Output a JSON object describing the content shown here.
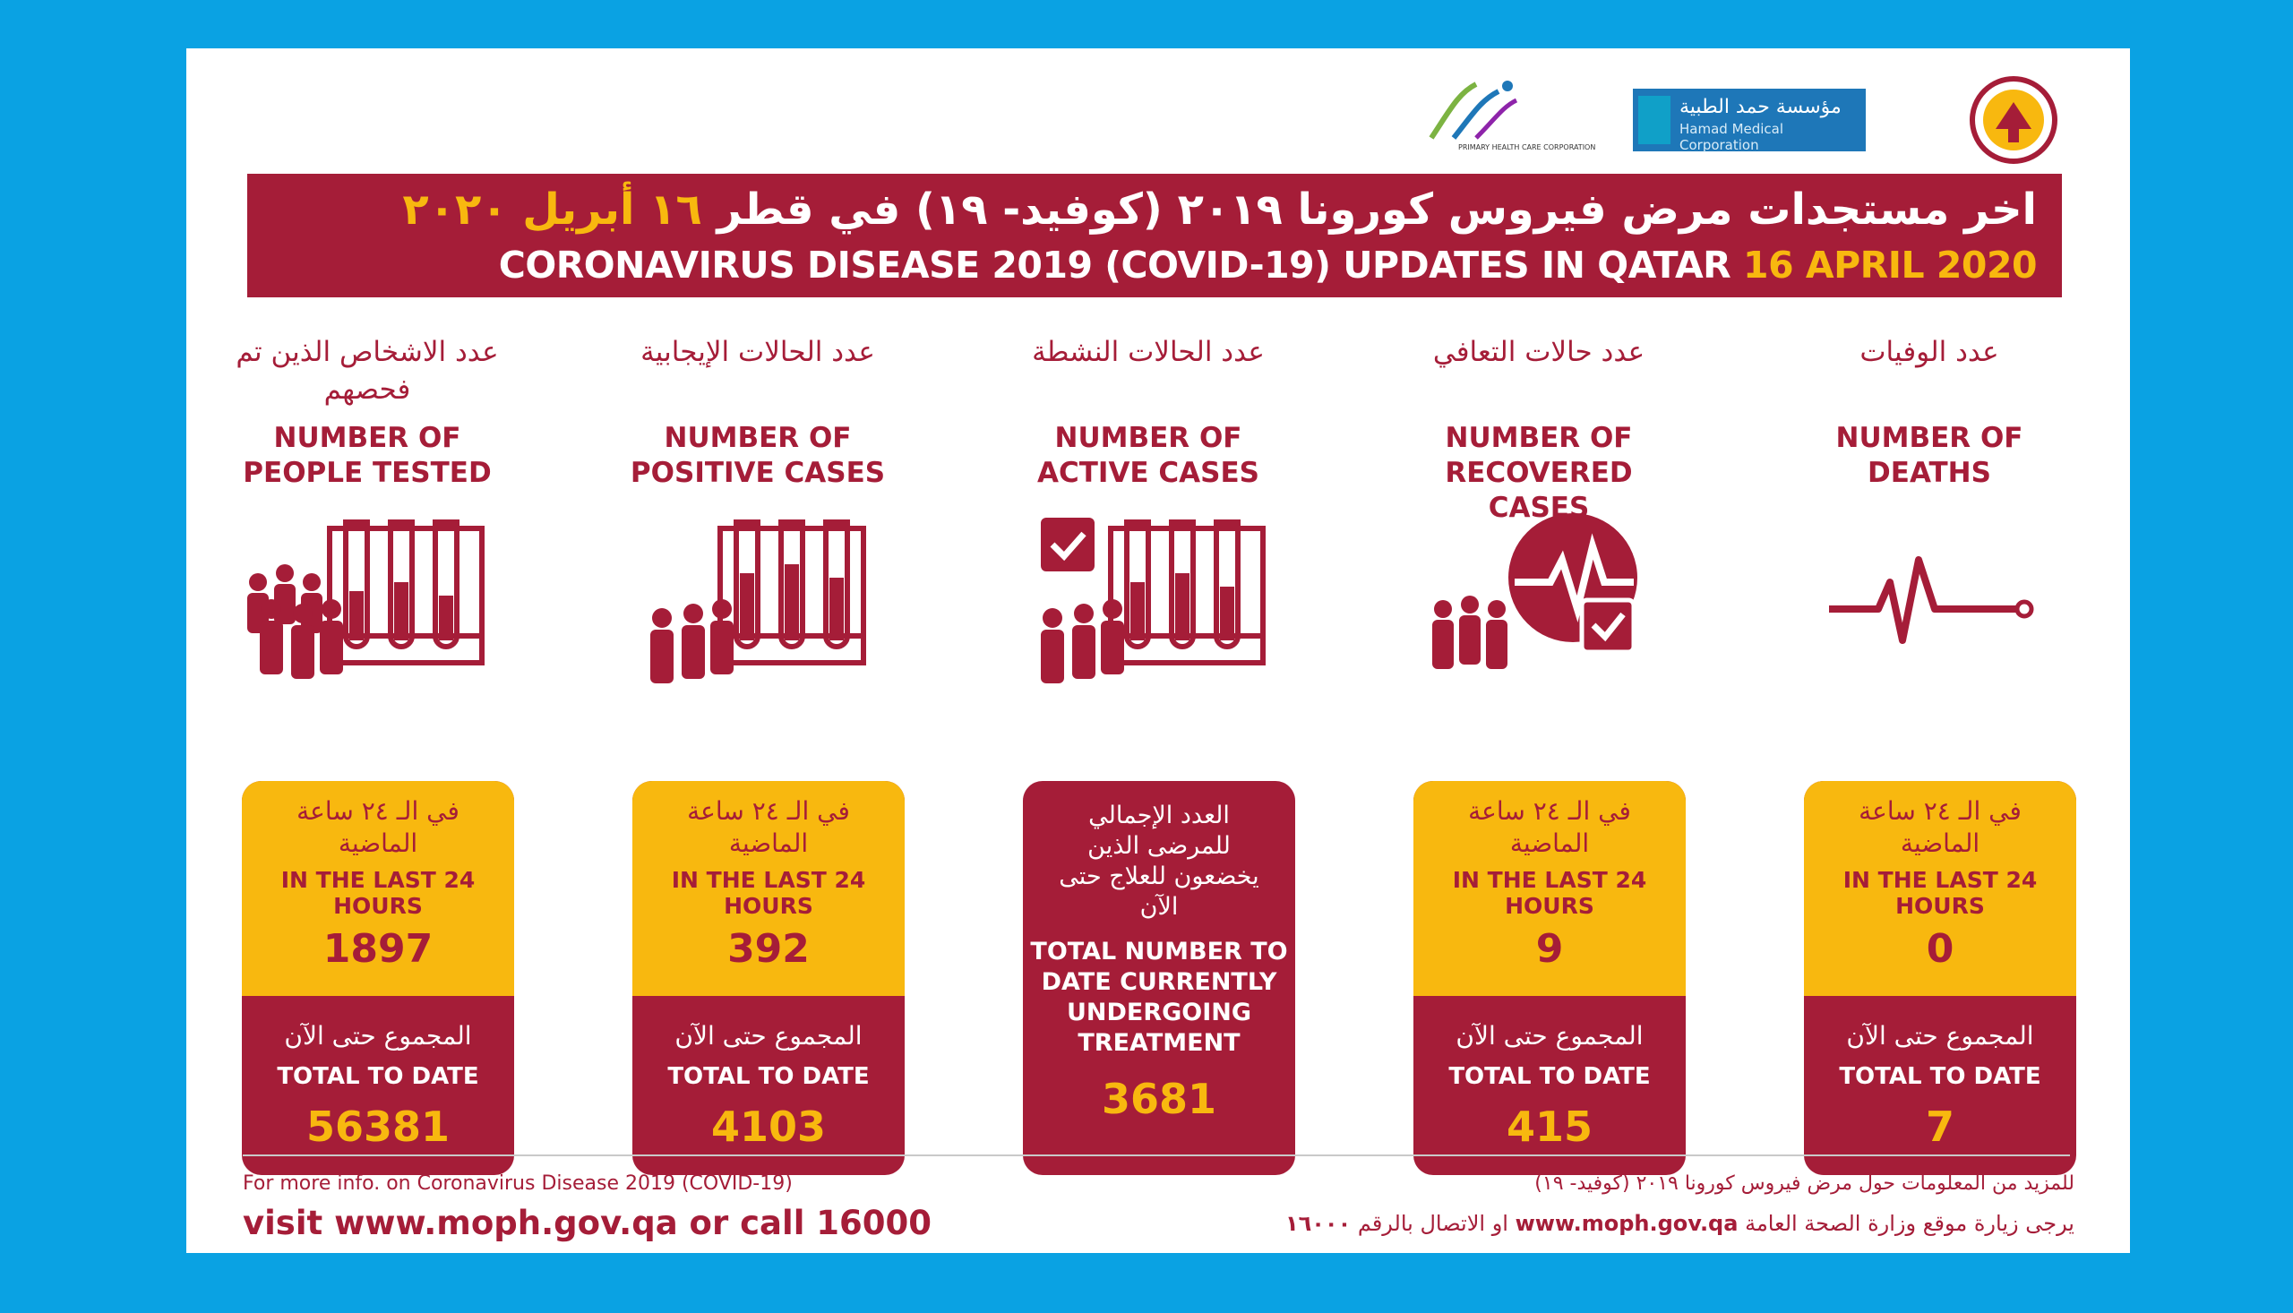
{
  "colors": {
    "background": "#0aa2e3",
    "primary": "#a51d38",
    "accent": "#f8b80f",
    "white": "#ffffff"
  },
  "logos": {
    "hmc": {
      "line1": "مؤسسة حمد الطبية",
      "line2": "Hamad Medical Corporation"
    },
    "phcc": {
      "caption": "PRIMARY HEALTH CARE CORPORATION"
    }
  },
  "banner": {
    "title_ar": "اخر مستجدات مرض فيروس كورونا ٢٠١٩ (كوفيد- ١٩) في قطر",
    "date_ar": "١٦ أبريل ٢٠٢٠",
    "title_en": "CORONAVIRUS DISEASE 2019 (COVID-19) UPDATES IN QATAR",
    "date_en": "16 APRIL 2020"
  },
  "columns": [
    {
      "title_ar": "عدد الاشخاص الذين تم فحصهم",
      "title_en": "NUMBER OF PEOPLE TESTED",
      "icon": "people-test-tubes-icon",
      "last24_ar": "في الـ ٢٤ ساعة الماضية",
      "last24_en": "IN THE LAST 24 HOURS",
      "last24_value": "1897",
      "total_ar": "المجموع حتى الآن",
      "total_en": "TOTAL TO DATE",
      "total_value": "56381"
    },
    {
      "title_ar": "عدد الحالات الإيجابية",
      "title_en": "NUMBER OF POSITIVE CASES",
      "icon": "positive-test-tubes-icon",
      "last24_ar": "في الـ ٢٤ ساعة الماضية",
      "last24_en": "IN THE LAST 24 HOURS",
      "last24_value": "392",
      "total_ar": "المجموع حتى الآن",
      "total_en": "TOTAL TO DATE",
      "total_value": "4103"
    },
    {
      "title_ar": "عدد الحالات النشطة",
      "title_en": "NUMBER OF ACTIVE CASES",
      "icon": "active-cases-check-icon",
      "total_ar": "العدد الإجمالي للمرضى الذين يخضعون للعلاج حتى الآن",
      "total_en": "TOTAL NUMBER TO DATE CURRENTLY UNDERGOING TREATMENT",
      "total_value": "3681"
    },
    {
      "title_ar": "عدد حالات التعافي",
      "title_en": "NUMBER OF RECOVERED CASES",
      "icon": "recovered-heartbeat-icon",
      "last24_ar": "في الـ ٢٤ ساعة الماضية",
      "last24_en": "IN THE LAST 24 HOURS",
      "last24_value": "9",
      "total_ar": "المجموع حتى الآن",
      "total_en": "TOTAL TO DATE",
      "total_value": "415"
    },
    {
      "title_ar": "عدد الوفيات",
      "title_en": "NUMBER OF DEATHS",
      "icon": "flatline-pulse-icon",
      "last24_ar": "في الـ ٢٤ ساعة الماضية",
      "last24_en": "IN THE LAST 24 HOURS",
      "last24_value": "0",
      "total_ar": "المجموع حتى الآن",
      "total_en": "TOTAL TO DATE",
      "total_value": "7"
    }
  ],
  "footer": {
    "info_en": "For more info. on Coronavirus Disease 2019 (COVID-19)",
    "visit_en": "visit www.moph.gov.qa or call 16000",
    "info_ar": "للمزيد من المعلومات حول مرض فيروس كورونا ٢٠١٩ (كوفيد- ١٩)",
    "visit_ar_prefix": "يرجى زيارة موقع وزارة الصحة العامة",
    "visit_site": "www.moph.gov.qa",
    "visit_ar_mid": "او الاتصال بالرقم",
    "visit_number_ar": "١٦٠٠٠"
  }
}
